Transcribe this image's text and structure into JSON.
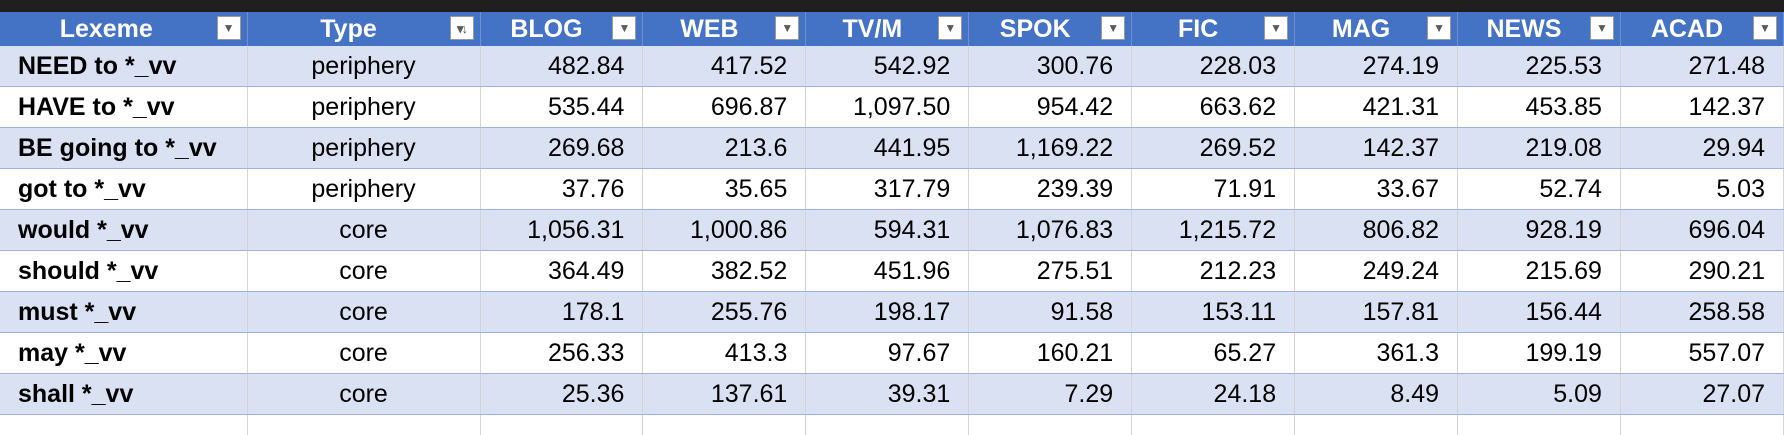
{
  "table": {
    "headers": [
      "Lexeme",
      "Type",
      "BLOG",
      "WEB",
      "TV/M",
      "SPOK",
      "FIC",
      "MAG",
      "NEWS",
      "ACAD"
    ],
    "filter_icons": [
      "dropdown-arrow-icon",
      "sort-descending-icon",
      "dropdown-arrow-icon",
      "dropdown-arrow-icon",
      "dropdown-arrow-icon",
      "dropdown-arrow-icon",
      "dropdown-arrow-icon",
      "dropdown-arrow-icon",
      "dropdown-arrow-icon",
      "dropdown-arrow-icon"
    ],
    "rows": [
      [
        "NEED to *_vv",
        "periphery",
        "482.84",
        "417.52",
        "542.92",
        "300.76",
        "228.03",
        "274.19",
        "225.53",
        "271.48"
      ],
      [
        "HAVE to *_vv",
        "periphery",
        "535.44",
        "696.87",
        "1,097.50",
        "954.42",
        "663.62",
        "421.31",
        "453.85",
        "142.37"
      ],
      [
        "BE going to *_vv",
        "periphery",
        "269.68",
        "213.6",
        "441.95",
        "1,169.22",
        "269.52",
        "142.37",
        "219.08",
        "29.94"
      ],
      [
        "got to *_vv",
        "periphery",
        "37.76",
        "35.65",
        "317.79",
        "239.39",
        "71.91",
        "33.67",
        "52.74",
        "5.03"
      ],
      [
        "would *_vv",
        "core",
        "1,056.31",
        "1,000.86",
        "594.31",
        "1,076.83",
        "1,215.72",
        "806.82",
        "928.19",
        "696.04"
      ],
      [
        "should *_vv",
        "core",
        "364.49",
        "382.52",
        "451.96",
        "275.51",
        "212.23",
        "249.24",
        "215.69",
        "290.21"
      ],
      [
        "must *_vv",
        "core",
        "178.1",
        "255.76",
        "198.17",
        "91.58",
        "153.11",
        "157.81",
        "156.44",
        "258.58"
      ],
      [
        "may *_vv",
        "core",
        "256.33",
        "413.3",
        "97.67",
        "160.21",
        "65.27",
        "361.3",
        "199.19",
        "557.07"
      ],
      [
        "shall *_vv",
        "core",
        "25.36",
        "137.61",
        "39.31",
        "7.29",
        "24.18",
        "8.49",
        "5.09",
        "27.07"
      ]
    ]
  },
  "colors": {
    "header_bg": "#4472c4",
    "band_bg": "#d9e1f2",
    "plain_bg": "#ffffff"
  }
}
